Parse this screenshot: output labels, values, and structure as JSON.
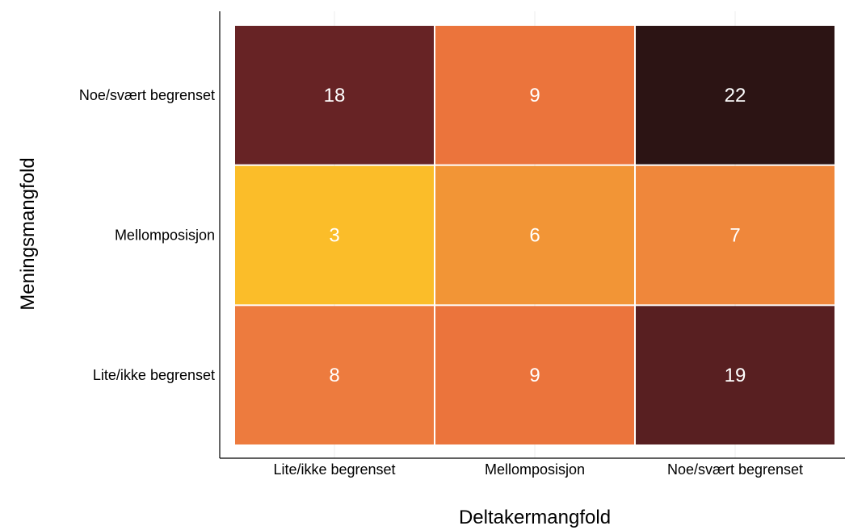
{
  "chart_data": {
    "type": "heatmap",
    "title": "",
    "xlabel": "Deltakermangfold",
    "ylabel": "Meningsmangfold",
    "x_categories": [
      "Lite/ikke begrenset",
      "Mellomposisjon",
      "Noe/svært begrenset"
    ],
    "y_categories": [
      "Lite/ikke begrenset",
      "Mellomposisjon",
      "Noe/svært begrenset"
    ],
    "values": [
      [
        8,
        9,
        19
      ],
      [
        3,
        6,
        7
      ],
      [
        18,
        9,
        22
      ]
    ],
    "color_scale": {
      "low": "#fbbd29",
      "high": "#2c1414",
      "min": 3,
      "max": 22
    },
    "grid": false,
    "legend": "none"
  }
}
